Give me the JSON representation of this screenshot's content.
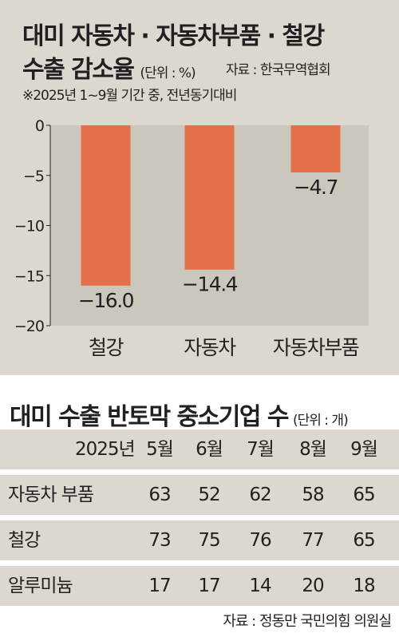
{
  "chart_data": {
    "type": "bar",
    "title_line1": "대미 자동차 · 자동차부품 · 철강",
    "title_line2": "수출 감소율",
    "unit": "(단위 : %)",
    "source": "자료 : 한국무역협회",
    "note": "※2025년 1~9월 기간 중, 전년동기대비",
    "categories": [
      "철강",
      "자동차",
      "자동차부품"
    ],
    "values": [
      -16.0,
      -14.4,
      -4.7
    ],
    "value_labels": [
      "−16.0",
      "−14.4",
      "−4.7"
    ],
    "ylim": [
      -20,
      0
    ],
    "yticks": [
      0,
      -5,
      -10,
      -15,
      -20
    ],
    "ytick_labels": [
      "0",
      "−5",
      "−10",
      "−15",
      "−20"
    ],
    "bar_color": "#e4704a",
    "plot_bg": "#ccc7bd"
  },
  "table": {
    "title": "대미 수출 반토막 중소기업 수",
    "unit": "(단위 : 개)",
    "header_year": "2025년",
    "columns": [
      "5월",
      "6월",
      "7월",
      "8월",
      "9월"
    ],
    "rows": [
      {
        "label": "자동차 부품",
        "values": [
          "63",
          "52",
          "62",
          "58",
          "65"
        ]
      },
      {
        "label": "철강",
        "values": [
          "73",
          "75",
          "76",
          "77",
          "65"
        ]
      },
      {
        "label": "알루미늄",
        "values": [
          "17",
          "17",
          "14",
          "20",
          "18"
        ]
      }
    ],
    "source": "자료 : 정동만 국민의힘 의원실"
  }
}
